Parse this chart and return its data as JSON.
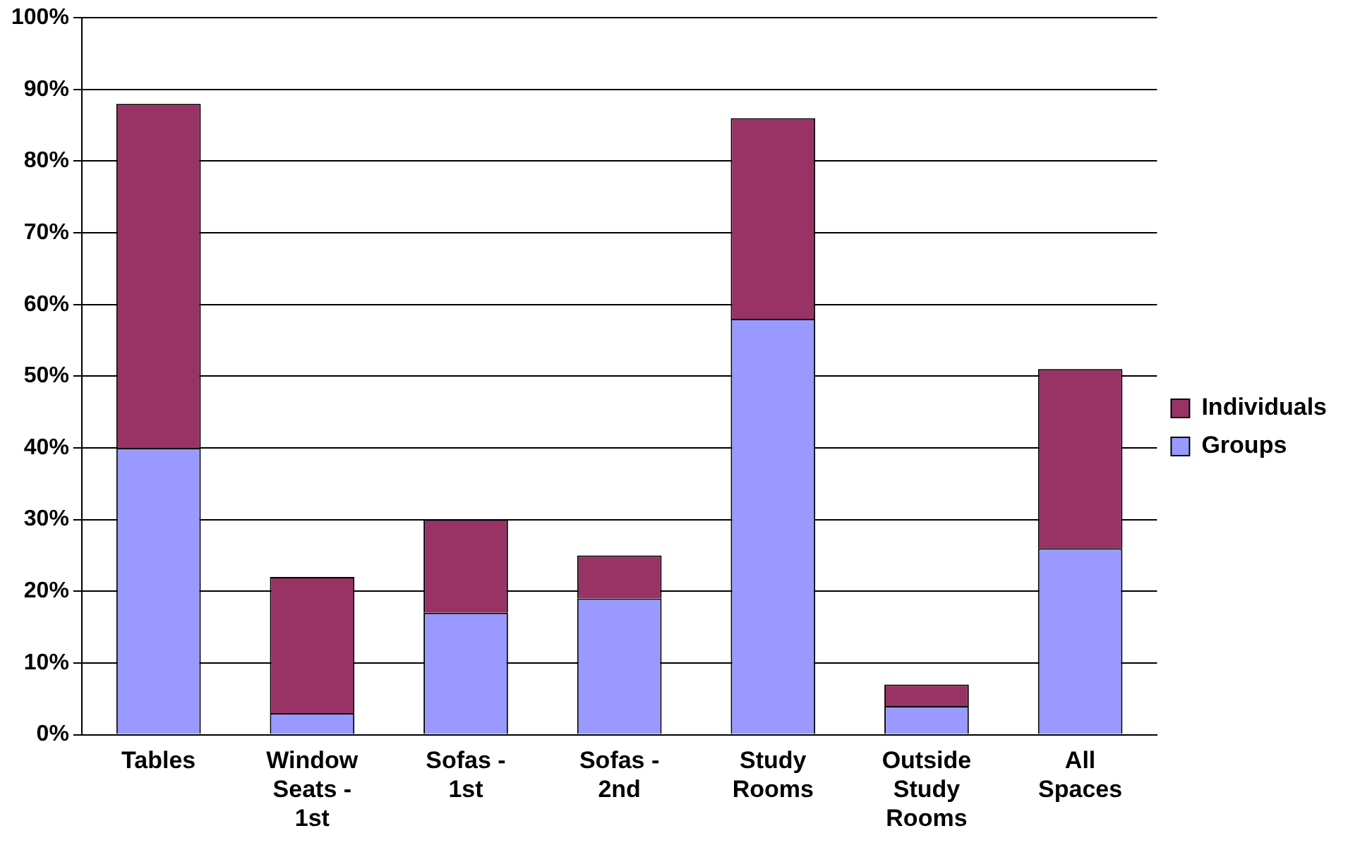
{
  "chart_data": {
    "type": "bar",
    "stacked": true,
    "categories": [
      "Tables",
      "Window Seats - 1st",
      "Sofas - 1st",
      "Sofas - 2nd",
      "Study Rooms",
      "Outside Study Rooms",
      "All Spaces"
    ],
    "series": [
      {
        "name": "Groups",
        "color": "#9999ff",
        "values": [
          40,
          3,
          17,
          19,
          58,
          4,
          26
        ]
      },
      {
        "name": "Individuals",
        "color": "#993366",
        "values": [
          48,
          19,
          13,
          6,
          28,
          3,
          25
        ]
      }
    ],
    "ylim": [
      0,
      100
    ],
    "yticks": [
      {
        "value": 0,
        "label": "0%"
      },
      {
        "value": 10,
        "label": "10%"
      },
      {
        "value": 20,
        "label": "20%"
      },
      {
        "value": 30,
        "label": "30%"
      },
      {
        "value": 40,
        "label": "40%"
      },
      {
        "value": 50,
        "label": "50%"
      },
      {
        "value": 60,
        "label": "60%"
      },
      {
        "value": 70,
        "label": "70%"
      },
      {
        "value": 80,
        "label": "80%"
      },
      {
        "value": 90,
        "label": "90%"
      },
      {
        "value": 100,
        "label": "100%"
      }
    ],
    "grid": "y",
    "legend": "right"
  }
}
